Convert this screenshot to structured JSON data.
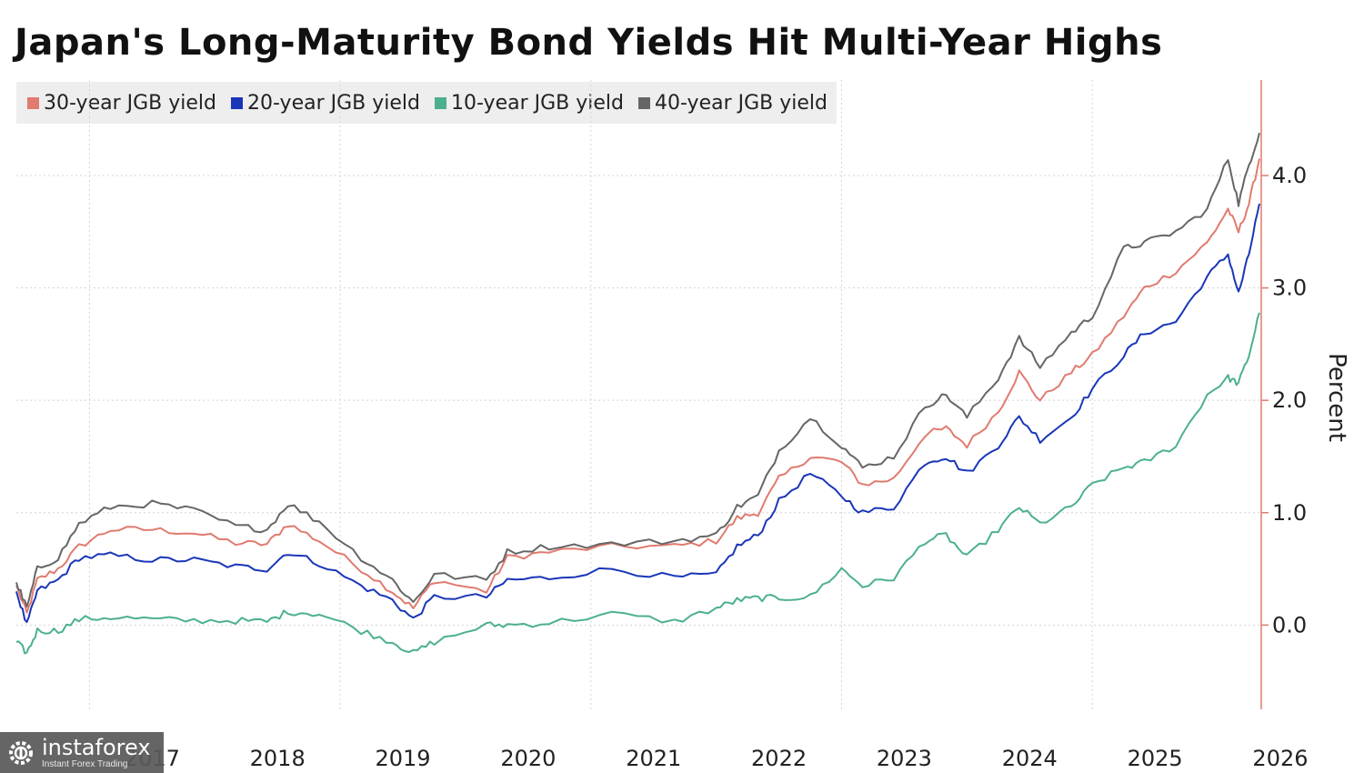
{
  "chart_data": {
    "type": "line",
    "title": "Japan's Long-Maturity Bond Yields Hit Multi-Year Highs",
    "ylabel": "Percent",
    "ylim": [
      -0.75,
      4.85
    ],
    "yticks": [
      0.0,
      1.0,
      2.0,
      3.0,
      4.0
    ],
    "ytick_labels": [
      "0.0",
      "1.0",
      "2.0",
      "3.0",
      "4.0"
    ],
    "x_range": [
      "2016-06",
      "2026-05"
    ],
    "xtick_labels": [
      "2017",
      "2018",
      "2019",
      "2020",
      "2021",
      "2022",
      "2023",
      "2024",
      "2025",
      "2026"
    ],
    "x_gridlines": [
      "2017-01",
      "2019-01",
      "2021-01",
      "2023-01",
      "2025-01"
    ],
    "grid": true,
    "legend_position": "top-left",
    "series": [
      {
        "name": "30-year JGB yield",
        "color": "#e07b6f",
        "points": [
          [
            "2016-06",
            0.35
          ],
          [
            "2016-07",
            0.1
          ],
          [
            "2016-08",
            0.4
          ],
          [
            "2016-10",
            0.5
          ],
          [
            "2016-12",
            0.7
          ],
          [
            "2017-03",
            0.85
          ],
          [
            "2017-07",
            0.85
          ],
          [
            "2017-11",
            0.82
          ],
          [
            "2018-03",
            0.73
          ],
          [
            "2018-06",
            0.72
          ],
          [
            "2018-08",
            0.9
          ],
          [
            "2018-11",
            0.75
          ],
          [
            "2019-03",
            0.5
          ],
          [
            "2019-06",
            0.3
          ],
          [
            "2019-08",
            0.15
          ],
          [
            "2019-10",
            0.4
          ],
          [
            "2020-03",
            0.3
          ],
          [
            "2020-05",
            0.6
          ],
          [
            "2020-09",
            0.65
          ],
          [
            "2021-03",
            0.7
          ],
          [
            "2021-09",
            0.7
          ],
          [
            "2022-01",
            0.75
          ],
          [
            "2022-03",
            0.95
          ],
          [
            "2022-05",
            1.0
          ],
          [
            "2022-07",
            1.3
          ],
          [
            "2022-10",
            1.5
          ],
          [
            "2023-01",
            1.45
          ],
          [
            "2023-03",
            1.25
          ],
          [
            "2023-06",
            1.3
          ],
          [
            "2023-09",
            1.7
          ],
          [
            "2023-11",
            1.75
          ],
          [
            "2024-01",
            1.6
          ],
          [
            "2024-04",
            1.9
          ],
          [
            "2024-06",
            2.25
          ],
          [
            "2024-08",
            2.0
          ],
          [
            "2024-11",
            2.25
          ],
          [
            "2025-01",
            2.4
          ],
          [
            "2025-04",
            2.75
          ],
          [
            "2025-06",
            3.0
          ],
          [
            "2025-09",
            3.15
          ],
          [
            "2025-12",
            3.4
          ],
          [
            "2026-02",
            3.7
          ],
          [
            "2026-03",
            3.5
          ],
          [
            "2026-04",
            3.75
          ],
          [
            "2026-05",
            4.15
          ]
        ]
      },
      {
        "name": "20-year JGB yield",
        "color": "#1a36b8",
        "points": [
          [
            "2016-06",
            0.3
          ],
          [
            "2016-07",
            0.0
          ],
          [
            "2016-08",
            0.3
          ],
          [
            "2016-10",
            0.4
          ],
          [
            "2016-12",
            0.6
          ],
          [
            "2017-03",
            0.62
          ],
          [
            "2017-07",
            0.58
          ],
          [
            "2017-11",
            0.58
          ],
          [
            "2018-03",
            0.52
          ],
          [
            "2018-06",
            0.5
          ],
          [
            "2018-08",
            0.65
          ],
          [
            "2018-11",
            0.55
          ],
          [
            "2019-03",
            0.35
          ],
          [
            "2019-06",
            0.22
          ],
          [
            "2019-08",
            0.05
          ],
          [
            "2019-10",
            0.25
          ],
          [
            "2020-03",
            0.25
          ],
          [
            "2020-05",
            0.4
          ],
          [
            "2020-09",
            0.42
          ],
          [
            "2021-03",
            0.5
          ],
          [
            "2021-09",
            0.42
          ],
          [
            "2022-01",
            0.45
          ],
          [
            "2022-03",
            0.7
          ],
          [
            "2022-05",
            0.8
          ],
          [
            "2022-07",
            1.1
          ],
          [
            "2022-10",
            1.35
          ],
          [
            "2023-01",
            1.15
          ],
          [
            "2023-03",
            1.0
          ],
          [
            "2023-06",
            1.05
          ],
          [
            "2023-09",
            1.45
          ],
          [
            "2023-11",
            1.5
          ],
          [
            "2024-01",
            1.35
          ],
          [
            "2024-04",
            1.6
          ],
          [
            "2024-06",
            1.85
          ],
          [
            "2024-08",
            1.65
          ],
          [
            "2024-11",
            1.85
          ],
          [
            "2025-01",
            2.1
          ],
          [
            "2025-04",
            2.4
          ],
          [
            "2025-06",
            2.6
          ],
          [
            "2025-09",
            2.7
          ],
          [
            "2025-12",
            3.1
          ],
          [
            "2026-02",
            3.3
          ],
          [
            "2026-03",
            2.95
          ],
          [
            "2026-04",
            3.3
          ],
          [
            "2026-05",
            3.75
          ]
        ]
      },
      {
        "name": "10-year JGB yield",
        "color": "#4cb08f",
        "points": [
          [
            "2016-06",
            -0.15
          ],
          [
            "2016-07",
            -0.25
          ],
          [
            "2016-08",
            -0.05
          ],
          [
            "2016-10",
            -0.05
          ],
          [
            "2016-12",
            0.05
          ],
          [
            "2017-03",
            0.07
          ],
          [
            "2017-07",
            0.05
          ],
          [
            "2017-11",
            0.04
          ],
          [
            "2018-03",
            0.04
          ],
          [
            "2018-06",
            0.03
          ],
          [
            "2018-08",
            0.12
          ],
          [
            "2018-11",
            0.1
          ],
          [
            "2019-03",
            -0.05
          ],
          [
            "2019-06",
            -0.15
          ],
          [
            "2019-08",
            -0.25
          ],
          [
            "2019-10",
            -0.15
          ],
          [
            "2020-03",
            0.0
          ],
          [
            "2020-05",
            0.0
          ],
          [
            "2020-09",
            0.02
          ],
          [
            "2021-03",
            0.1
          ],
          [
            "2021-09",
            0.03
          ],
          [
            "2022-01",
            0.15
          ],
          [
            "2022-03",
            0.22
          ],
          [
            "2022-05",
            0.24
          ],
          [
            "2022-07",
            0.24
          ],
          [
            "2022-10",
            0.25
          ],
          [
            "2023-01",
            0.5
          ],
          [
            "2023-03",
            0.35
          ],
          [
            "2023-06",
            0.42
          ],
          [
            "2023-09",
            0.75
          ],
          [
            "2023-11",
            0.8
          ],
          [
            "2024-01",
            0.6
          ],
          [
            "2024-04",
            0.85
          ],
          [
            "2024-06",
            1.05
          ],
          [
            "2024-08",
            0.9
          ],
          [
            "2024-11",
            1.05
          ],
          [
            "2025-01",
            1.25
          ],
          [
            "2025-04",
            1.4
          ],
          [
            "2025-06",
            1.45
          ],
          [
            "2025-09",
            1.6
          ],
          [
            "2025-12",
            2.05
          ],
          [
            "2026-02",
            2.2
          ],
          [
            "2026-03",
            2.15
          ],
          [
            "2026-04",
            2.4
          ],
          [
            "2026-05",
            2.78
          ]
        ]
      },
      {
        "name": "40-year JGB yield",
        "color": "#666666",
        "points": [
          [
            "2016-06",
            0.38
          ],
          [
            "2016-07",
            0.15
          ],
          [
            "2016-08",
            0.5
          ],
          [
            "2016-10",
            0.6
          ],
          [
            "2016-12",
            0.9
          ],
          [
            "2017-03",
            1.05
          ],
          [
            "2017-07",
            1.08
          ],
          [
            "2017-11",
            1.02
          ],
          [
            "2018-03",
            0.88
          ],
          [
            "2018-06",
            0.85
          ],
          [
            "2018-08",
            1.08
          ],
          [
            "2018-11",
            0.92
          ],
          [
            "2019-03",
            0.6
          ],
          [
            "2019-06",
            0.4
          ],
          [
            "2019-08",
            0.2
          ],
          [
            "2019-10",
            0.45
          ],
          [
            "2020-03",
            0.4
          ],
          [
            "2020-05",
            0.65
          ],
          [
            "2020-09",
            0.7
          ],
          [
            "2021-03",
            0.72
          ],
          [
            "2021-09",
            0.75
          ],
          [
            "2022-01",
            0.8
          ],
          [
            "2022-03",
            1.05
          ],
          [
            "2022-05",
            1.15
          ],
          [
            "2022-07",
            1.55
          ],
          [
            "2022-10",
            1.85
          ],
          [
            "2023-01",
            1.6
          ],
          [
            "2023-03",
            1.4
          ],
          [
            "2023-06",
            1.5
          ],
          [
            "2023-09",
            1.95
          ],
          [
            "2023-11",
            2.05
          ],
          [
            "2024-01",
            1.85
          ],
          [
            "2024-04",
            2.2
          ],
          [
            "2024-06",
            2.55
          ],
          [
            "2024-08",
            2.3
          ],
          [
            "2024-11",
            2.6
          ],
          [
            "2025-01",
            2.75
          ],
          [
            "2025-04",
            3.35
          ],
          [
            "2025-06",
            3.4
          ],
          [
            "2025-09",
            3.5
          ],
          [
            "2025-12",
            3.7
          ],
          [
            "2026-02",
            4.15
          ],
          [
            "2026-03",
            3.75
          ],
          [
            "2026-04",
            4.1
          ],
          [
            "2026-05",
            4.38
          ]
        ]
      }
    ]
  },
  "watermark": {
    "brand": "instaforex",
    "tagline": "Instant Forex Trading",
    "background": "#5a5a5a"
  }
}
